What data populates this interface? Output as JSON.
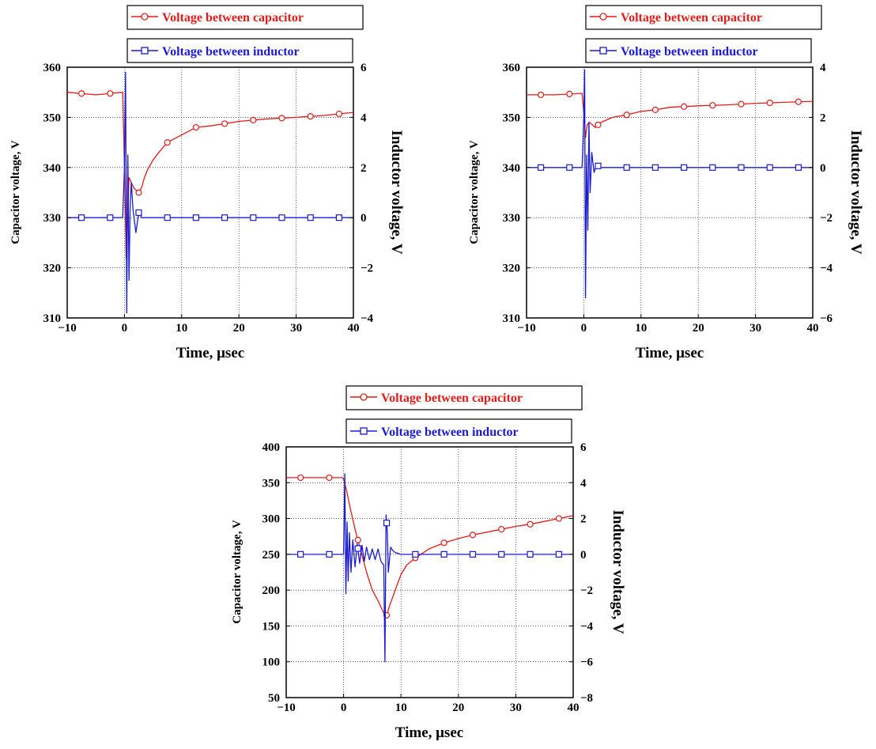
{
  "chart_data": [
    {
      "type": "line",
      "xlabel": "Time, μsec",
      "ylabel": "Capacitor voltage, V",
      "ylabel_right": "Inductor voltage, V",
      "xlim": [
        -10,
        40
      ],
      "ylim": [
        310,
        360
      ],
      "ylim_right": [
        -4,
        6
      ],
      "x_ticks": [
        -10,
        0,
        10,
        20,
        30,
        40
      ],
      "y_ticks": [
        310,
        320,
        330,
        340,
        350,
        360
      ],
      "y_right_ticks": [
        -4,
        -2,
        0,
        2,
        4,
        6
      ],
      "grid": true,
      "legend": "top-center",
      "series": [
        {
          "name": "Voltage between capacitor",
          "axis": "left",
          "color": "#e01c1c",
          "marker": "circle",
          "x": [
            -10,
            -5,
            -0.3,
            0,
            0.3,
            0.8,
            1.2,
            1.6,
            2.0,
            2.5,
            3,
            3.5,
            4,
            5,
            6,
            7.5,
            10,
            12.5,
            15,
            20,
            25,
            30,
            35,
            40
          ],
          "y": [
            355,
            354.5,
            355,
            340,
            322,
            338,
            337,
            336,
            335.5,
            335,
            336,
            338,
            339.5,
            341.5,
            343,
            345,
            346.5,
            348,
            348.3,
            349.2,
            349.7,
            350,
            350.4,
            351
          ]
        },
        {
          "name": "Voltage between inductor",
          "axis": "right",
          "color": "#1a1acf",
          "marker": "square",
          "x": [
            -10,
            -5,
            -0.3,
            0,
            0.2,
            0.4,
            0.6,
            0.8,
            1.0,
            1.2,
            1.5,
            2.0,
            2.5,
            3,
            5,
            10,
            15,
            20,
            25,
            30,
            35,
            40
          ],
          "y": [
            0,
            0,
            0,
            2,
            5.8,
            -3.8,
            2.5,
            -2.5,
            0.5,
            1.4,
            0.3,
            -0.6,
            0.2,
            0,
            0,
            0,
            0,
            0,
            0,
            0,
            0,
            0
          ]
        }
      ]
    },
    {
      "type": "line",
      "xlabel": "Time, μsec",
      "ylabel": "Capacitor voltage, V",
      "ylabel_right": "Inductor voltage, V",
      "xlim": [
        -10,
        40
      ],
      "ylim": [
        310,
        360
      ],
      "ylim_right": [
        -6,
        4
      ],
      "x_ticks": [
        -10,
        0,
        10,
        20,
        30,
        40
      ],
      "y_ticks": [
        310,
        320,
        330,
        340,
        350,
        360
      ],
      "y_right_ticks": [
        -6,
        -4,
        -2,
        0,
        2,
        4
      ],
      "grid": true,
      "legend": "top-center",
      "series": [
        {
          "name": "Voltage between capacitor",
          "axis": "left",
          "color": "#e01c1c",
          "marker": "circle",
          "x": [
            -10,
            -5,
            -0.3,
            0,
            0.3,
            0.6,
            1.0,
            1.5,
            2.0,
            2.5,
            3,
            4,
            5,
            7.5,
            10,
            12.5,
            15,
            20,
            25,
            30,
            35,
            40
          ],
          "y": [
            354.5,
            354.5,
            354.8,
            351,
            346,
            348.5,
            349,
            348.5,
            348,
            348.5,
            349,
            349.5,
            350,
            350.5,
            351.2,
            351.5,
            352,
            352.3,
            352.5,
            352.8,
            353,
            353.2
          ]
        },
        {
          "name": "Voltage between inductor",
          "axis": "right",
          "color": "#1a1acf",
          "marker": "square",
          "x": [
            -10,
            -5,
            -0.3,
            0,
            0.15,
            0.3,
            0.5,
            0.7,
            0.9,
            1.1,
            1.4,
            1.8,
            2.2,
            3,
            5,
            10,
            15,
            20,
            25,
            30,
            35,
            40
          ],
          "y": [
            0,
            0,
            0,
            2,
            3.9,
            -5.2,
            0.5,
            -2.5,
            1.8,
            -1,
            0.6,
            -0.2,
            0.1,
            0,
            0,
            0,
            0,
            0,
            0,
            0,
            0,
            0
          ]
        }
      ]
    },
    {
      "type": "line",
      "xlabel": "Time, μsec",
      "ylabel": "Capacitor voltage, V",
      "ylabel_right": "Inductor voltage, V",
      "xlim": [
        -10,
        40
      ],
      "ylim": [
        50,
        400
      ],
      "ylim_right": [
        -8,
        6
      ],
      "x_ticks": [
        -10,
        0,
        10,
        20,
        30,
        40
      ],
      "y_ticks": [
        50,
        100,
        150,
        200,
        250,
        300,
        350,
        400
      ],
      "y_right_ticks": [
        -8,
        -6,
        -4,
        -2,
        0,
        2,
        4,
        6
      ],
      "grid": true,
      "legend": "top-center",
      "series": [
        {
          "name": "Voltage between capacitor",
          "axis": "left",
          "color": "#e01c1c",
          "marker": "circle",
          "x": [
            -10,
            -5,
            -0.2,
            0,
            0.5,
            1,
            2,
            3,
            4,
            5,
            6,
            7,
            7.3,
            7.5,
            8,
            9,
            10,
            11,
            12.5,
            15,
            17.5,
            20,
            22.5,
            25,
            27.5,
            30,
            32.5,
            35,
            37.5,
            40
          ],
          "y": [
            357,
            357,
            357,
            355,
            340,
            320,
            285,
            255,
            225,
            200,
            185,
            168,
            162,
            165,
            178,
            200,
            222,
            235,
            245,
            258,
            266,
            272,
            277,
            281,
            285,
            289,
            292,
            296,
            300,
            304
          ]
        },
        {
          "name": "Voltage between inductor",
          "axis": "right",
          "color": "#1a1acf",
          "marker": "square",
          "x": [
            -10,
            -5,
            -0.2,
            0,
            0.2,
            0.4,
            0.6,
            0.8,
            1.0,
            1.3,
            1.6,
            2.0,
            2.4,
            2.8,
            3.2,
            3.6,
            4.0,
            4.5,
            5.0,
            5.5,
            6.0,
            6.5,
            7.0,
            7.2,
            7.4,
            7.6,
            7.8,
            8.2,
            8.6,
            9,
            10,
            15,
            20,
            25,
            30,
            35,
            40
          ],
          "y": [
            0,
            0,
            0,
            0,
            4.5,
            -2.2,
            1.8,
            -1.5,
            1.2,
            -1.0,
            0.8,
            -0.7,
            0.6,
            -0.5,
            0.5,
            -0.4,
            0.4,
            -0.3,
            0.3,
            -0.3,
            0.3,
            -0.4,
            -0.6,
            -6.0,
            2.2,
            1.3,
            -1.0,
            0.4,
            0.2,
            0.1,
            0,
            0,
            0,
            0,
            0,
            0,
            0
          ]
        }
      ]
    }
  ]
}
